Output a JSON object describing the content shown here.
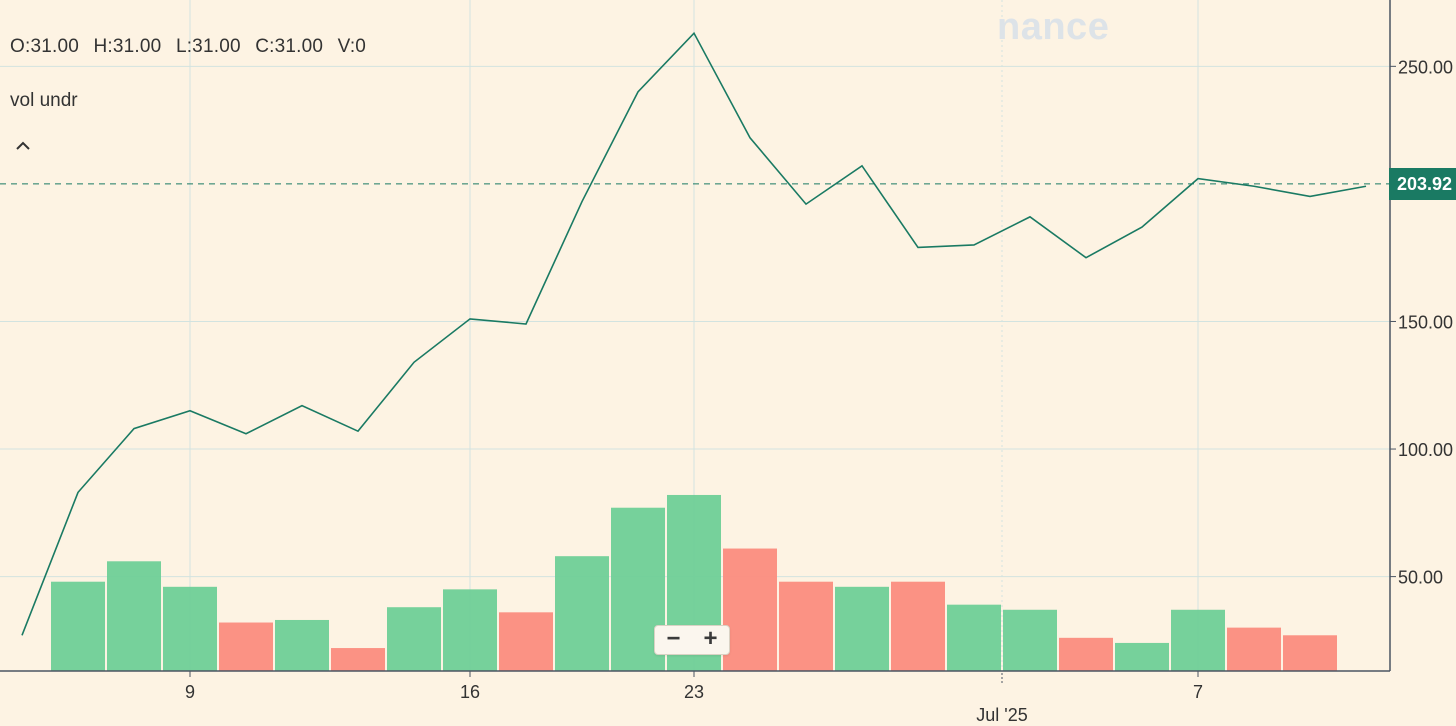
{
  "ohlc": {
    "open": "O:31.00",
    "high": "H:31.00",
    "low": "L:31.00",
    "close": "C:31.00",
    "volume": "V:0"
  },
  "legend": {
    "series_label": "vol undr"
  },
  "watermark": "nance",
  "current_price": {
    "value": 203.92,
    "label": "203.92"
  },
  "zoom": {
    "minus": "−",
    "plus": "+"
  },
  "colors": {
    "background": "#fdf3e3",
    "line": "#1a7a63",
    "volume_up": "#6fcf97",
    "volume_down": "#fb8c7e",
    "grid": "#d2e3e0",
    "axis": "#4b5563"
  },
  "chart_data": {
    "type": "line",
    "title": "",
    "ylabel": "",
    "xlabel": "",
    "y_axis": {
      "ylim": [
        13,
        276
      ],
      "ticks": [
        50,
        100,
        150,
        250
      ],
      "tick_labels": [
        "50.00",
        "100.00",
        "150.00",
        "250.00"
      ]
    },
    "x_axis": {
      "ticks": [
        {
          "label": "9",
          "index": 3
        },
        {
          "label": "16",
          "index": 8
        },
        {
          "label": "23",
          "index": 12
        },
        {
          "label": "Jul '25",
          "index": 17.5,
          "month_marker": true
        },
        {
          "label": "7",
          "index": 21
        }
      ]
    },
    "grid": true,
    "x": [
      0,
      1,
      2,
      3,
      4,
      5,
      6,
      7,
      8,
      9,
      10,
      11,
      12,
      13,
      14,
      15,
      16,
      17,
      18,
      19,
      20,
      21,
      22,
      23,
      24
    ],
    "series": [
      {
        "kind": "line",
        "values": [
          27,
          83,
          108,
          115,
          106,
          117,
          107,
          134,
          151,
          149,
          197,
          240,
          263,
          222,
          196,
          211,
          179,
          180,
          191,
          175,
          187,
          206,
          203,
          199,
          203
        ]
      },
      {
        "kind": "bar",
        "values": [
          null,
          48,
          56,
          46,
          32,
          33,
          22,
          38,
          45,
          36,
          58,
          77,
          82,
          61,
          48,
          46,
          48,
          39,
          37,
          26,
          24,
          37,
          30,
          27,
          null
        ],
        "direction": [
          null,
          "up",
          "up",
          "up",
          "down",
          "up",
          "down",
          "up",
          "up",
          "down",
          "up",
          "up",
          "up",
          "down",
          "down",
          "up",
          "down",
          "up",
          "up",
          "down",
          "up",
          "up",
          "down",
          "down",
          null
        ]
      }
    ]
  }
}
